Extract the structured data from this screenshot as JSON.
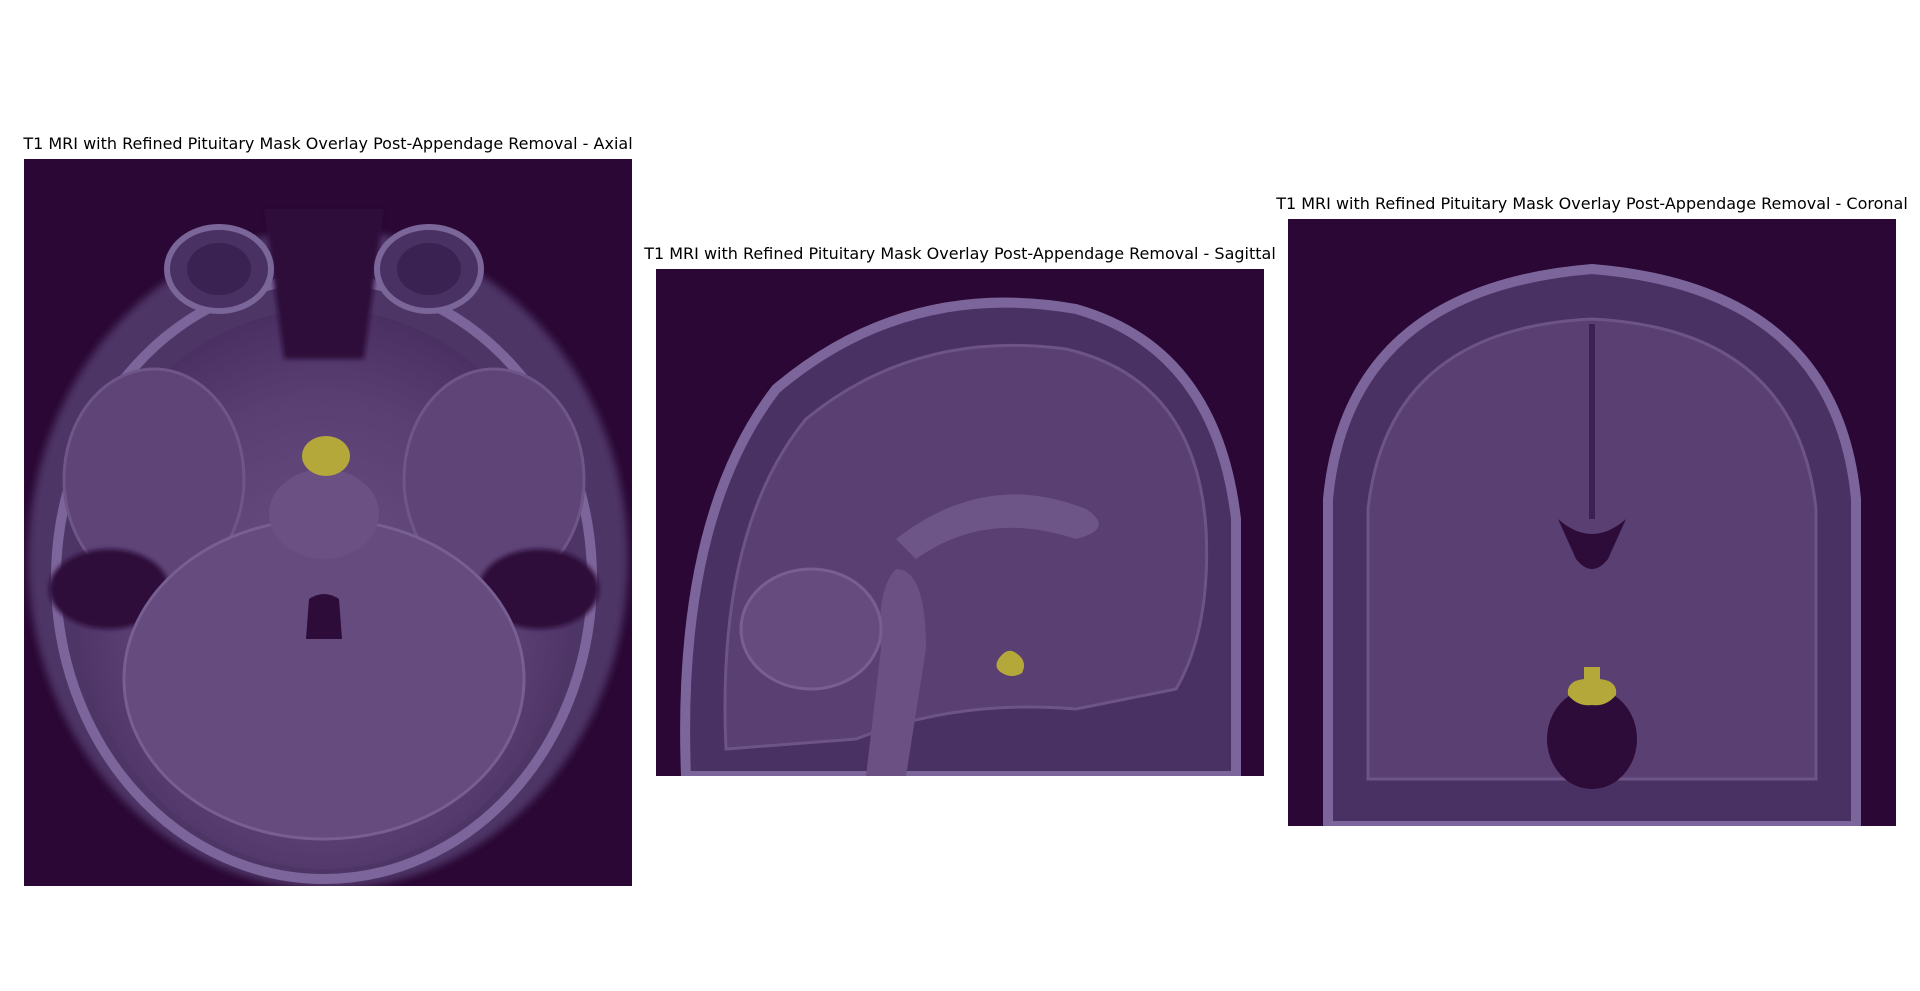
{
  "figure": {
    "background_color": "#ffffff",
    "image_background_color": "#2a0734",
    "tissue_color": "#5a3f73",
    "mask_color": "#b5a83a",
    "panels": [
      {
        "id": "axial",
        "title": "T1 MRI with Refined Pituitary Mask Overlay Post-Appendage Removal - Axial"
      },
      {
        "id": "sagittal",
        "title": "T1 MRI with Refined Pituitary Mask Overlay Post-Appendage Removal - Sagittal"
      },
      {
        "id": "coronal",
        "title": "T1 MRI with Refined Pituitary Mask Overlay Post-Appendage Removal - Coronal"
      }
    ]
  }
}
